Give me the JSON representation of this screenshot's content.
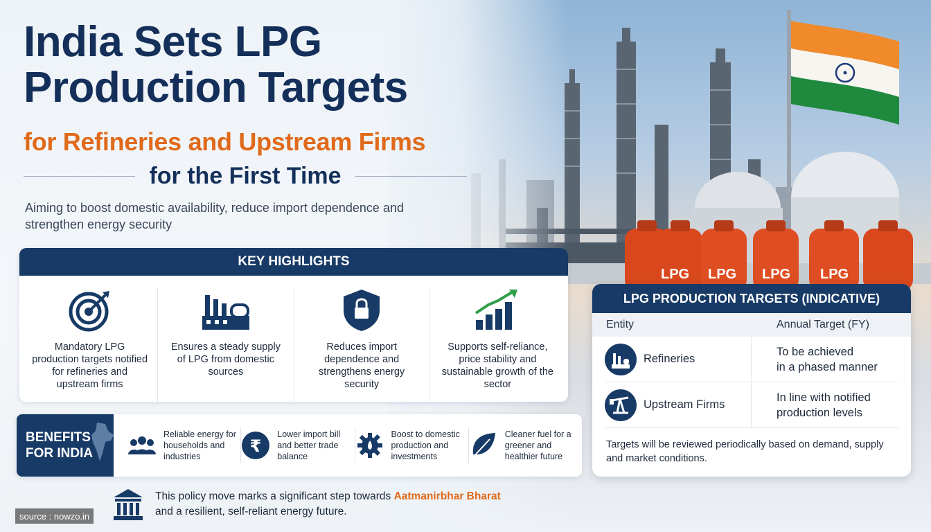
{
  "header": {
    "title_line1": "India Sets LPG",
    "title_line2": "Production Targets",
    "subtitle": "for Refineries and Upstream Firms",
    "first_time": "for the First Time",
    "tagline": "Aiming to boost domestic availability, reduce import dependence and strengthen energy security"
  },
  "key_highlights": {
    "heading": "KEY HIGHLIGHTS",
    "items": [
      {
        "icon": "target-icon",
        "text": "Mandatory LPG production targets notified for refineries and upstream firms"
      },
      {
        "icon": "factory-icon",
        "text": "Ensures a steady supply of LPG from domestic sources"
      },
      {
        "icon": "shield-lock-icon",
        "text": "Reduces import dependence and strengthens energy security"
      },
      {
        "icon": "growth-chart-icon",
        "text": "Supports self-reliance, price stability and sustainable growth of the sector"
      }
    ]
  },
  "benefits": {
    "heading_line1": "BENEFITS",
    "heading_line2": "FOR INDIA",
    "items": [
      {
        "icon": "people-icon",
        "text": "Reliable energy for households and industries"
      },
      {
        "icon": "rupee-icon",
        "text": "Lower import bill and better trade balance"
      },
      {
        "icon": "gear-icon",
        "text": "Boost to domestic production and investments"
      },
      {
        "icon": "leaf-icon",
        "text": "Cleaner fuel for a greener and healthier future"
      }
    ]
  },
  "footer": {
    "text_before": "This policy move marks a significant step towards ",
    "highlight": "Aatmanirbhar Bharat",
    "text_after": "and a resilient, self-reliant energy future."
  },
  "source": "source : nowzo.in",
  "targets": {
    "heading": "LPG PRODUCTION TARGETS (INDICATIVE)",
    "col_entity": "Entity",
    "col_target": "Annual Target (FY)",
    "rows": [
      {
        "icon": "refinery-icon",
        "entity": "Refineries",
        "target_line1": "To be achieved",
        "target_line2": "in a phased manner"
      },
      {
        "icon": "oil-pump-icon",
        "entity": "Upstream Firms",
        "target_line1": "In line with notified",
        "target_line2": "production levels"
      }
    ],
    "note": "Targets will be reviewed periodically based on demand, supply and market conditions."
  },
  "scene": {
    "cylinder_label": "LPG"
  },
  "colors": {
    "navy": "#173a66",
    "orange": "#e06a1b",
    "cylinder": "#d9481d",
    "flag_saffron": "#f08a2a",
    "flag_green": "#1f8a3d"
  }
}
